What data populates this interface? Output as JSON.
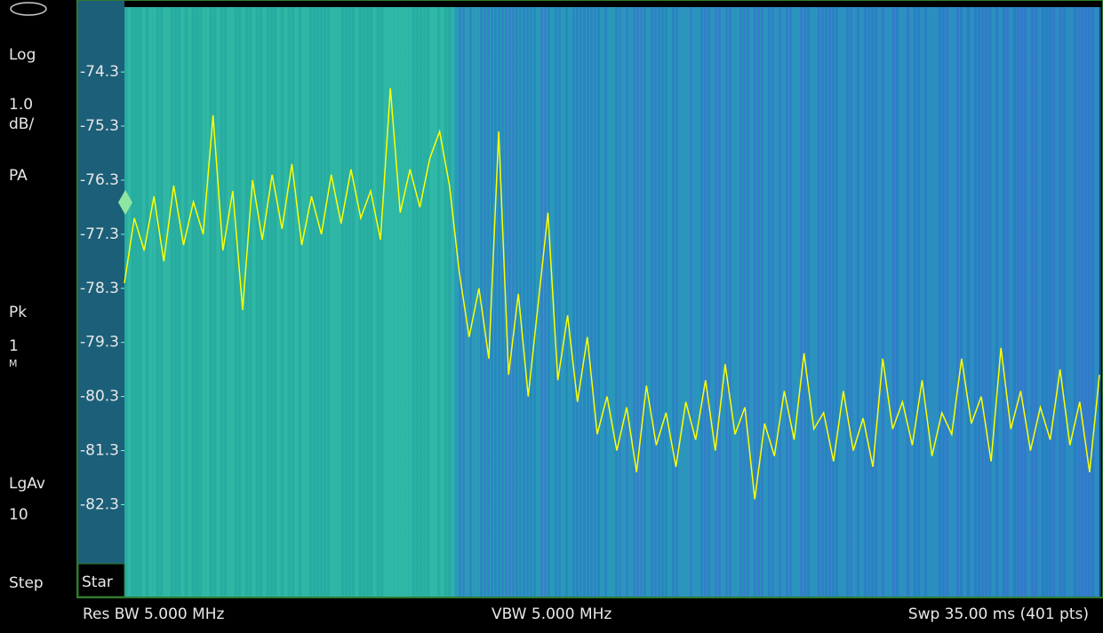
{
  "chart_data": {
    "type": "line",
    "color": "#ffff00",
    "ylim": [
      -73.1,
      -84
    ],
    "yticks": [
      -74.3,
      -75.3,
      -76.3,
      -77.3,
      -78.3,
      -79.3,
      -80.3,
      -81.3,
      -82.3
    ],
    "values": [
      -78.2,
      -77.0,
      -77.6,
      -76.6,
      -77.8,
      -76.4,
      -77.5,
      -76.7,
      -77.3,
      -75.1,
      -77.6,
      -76.5,
      -78.7,
      -76.3,
      -77.4,
      -76.2,
      -77.2,
      -76.0,
      -77.5,
      -76.6,
      -77.3,
      -76.2,
      -77.1,
      -76.1,
      -77.0,
      -76.5,
      -77.4,
      -74.6,
      -76.9,
      -76.1,
      -76.8,
      -75.9,
      -75.4,
      -76.4,
      -78.0,
      -79.2,
      -78.3,
      -79.6,
      -75.4,
      -79.9,
      -78.4,
      -80.3,
      -78.6,
      -76.9,
      -80.0,
      -78.8,
      -80.4,
      -79.2,
      -81.0,
      -80.3,
      -81.3,
      -80.5,
      -81.7,
      -80.1,
      -81.2,
      -80.6,
      -81.6,
      -80.4,
      -81.1,
      -80.0,
      -81.3,
      -79.7,
      -81.0,
      -80.5,
      -82.2,
      -80.8,
      -81.4,
      -80.2,
      -81.1,
      -79.5,
      -80.9,
      -80.6,
      -81.5,
      -80.2,
      -81.3,
      -80.7,
      -81.6,
      -79.6,
      -80.9,
      -80.4,
      -81.2,
      -80.0,
      -81.4,
      -80.6,
      -81.0,
      -79.6,
      -80.8,
      -80.3,
      -81.5,
      -79.4,
      -80.9,
      -80.2,
      -81.3,
      -80.5,
      -81.1,
      -79.8,
      -81.2,
      -80.4,
      -81.7,
      -79.9
    ]
  },
  "sidebar": [
    "Log",
    "1.0",
    "dB/",
    "PA",
    "Pk",
    "1",
    "M",
    "LgAv",
    "10",
    "Step"
  ],
  "start_label": "Star",
  "footer": {
    "res_bw": "Res BW 5.000 MHz",
    "vbw": "VBW 5.000 MHz",
    "sweep": "Swp 35.00 ms (401 pts)"
  }
}
